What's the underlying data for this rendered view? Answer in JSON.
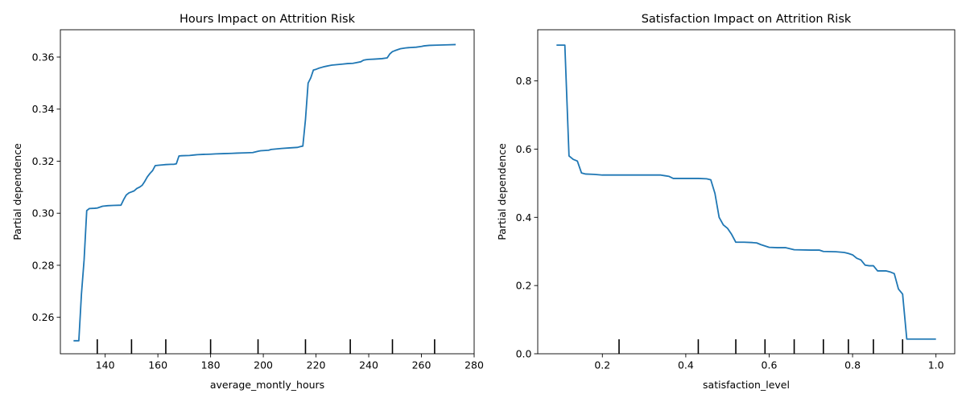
{
  "colors": {
    "line": "#1f77b4",
    "rug": "#000000",
    "background": "#ffffff"
  },
  "chart_data": [
    {
      "type": "line",
      "title": "Hours Impact on Attrition Risk",
      "xlabel": "average_montly_hours",
      "ylabel": "Partial dependence",
      "xlim": [
        123,
        280
      ],
      "ylim": [
        0.246,
        0.3705
      ],
      "xticks": [
        140,
        160,
        180,
        200,
        220,
        240,
        260,
        280
      ],
      "xtick_labels": [
        "140",
        "160",
        "180",
        "200",
        "220",
        "240",
        "260",
        "280"
      ],
      "yticks": [
        0.26,
        0.28,
        0.3,
        0.32,
        0.34,
        0.36
      ],
      "ytick_labels": [
        "0.26",
        "0.28",
        "0.30",
        "0.32",
        "0.34",
        "0.36"
      ],
      "grid": false,
      "deciles": [
        137,
        150,
        163,
        180,
        198,
        216,
        233,
        249,
        265
      ],
      "x": [
        128,
        130,
        131,
        132,
        133,
        134,
        136,
        137,
        139,
        141,
        143,
        146,
        147,
        148,
        149,
        150,
        151,
        152,
        153,
        154,
        155,
        156,
        157,
        158,
        159,
        160,
        162,
        163,
        165,
        166,
        167,
        168,
        169,
        172,
        174,
        175,
        177,
        180,
        182,
        185,
        188,
        190,
        193,
        196,
        198,
        199,
        202,
        203,
        205,
        207,
        210,
        213,
        214,
        215,
        216,
        217,
        218,
        219,
        220,
        221,
        222,
        223,
        224,
        225,
        226,
        228,
        230,
        232,
        234,
        235,
        237,
        238,
        239,
        240,
        242,
        245,
        247,
        248,
        249,
        250,
        252,
        254,
        255,
        258,
        260,
        261,
        263,
        266,
        270,
        273
      ],
      "y": [
        0.251,
        0.251,
        0.269,
        0.282,
        0.301,
        0.3018,
        0.3019,
        0.302,
        0.3027,
        0.3029,
        0.303,
        0.3031,
        0.3052,
        0.307,
        0.3078,
        0.3082,
        0.3086,
        0.3095,
        0.31,
        0.3107,
        0.3122,
        0.314,
        0.3153,
        0.3164,
        0.3183,
        0.3184,
        0.3186,
        0.3187,
        0.3188,
        0.3188,
        0.319,
        0.322,
        0.3221,
        0.3222,
        0.3224,
        0.3225,
        0.3226,
        0.3227,
        0.3228,
        0.3229,
        0.323,
        0.3231,
        0.3232,
        0.3233,
        0.3238,
        0.324,
        0.3242,
        0.3245,
        0.3247,
        0.3249,
        0.3251,
        0.3253,
        0.3256,
        0.3258,
        0.336,
        0.35,
        0.352,
        0.355,
        0.3553,
        0.3557,
        0.356,
        0.3563,
        0.3565,
        0.3567,
        0.3569,
        0.3571,
        0.3573,
        0.3575,
        0.3576,
        0.3578,
        0.3582,
        0.3588,
        0.359,
        0.3591,
        0.3592,
        0.3594,
        0.3597,
        0.3612,
        0.3621,
        0.3625,
        0.3632,
        0.3635,
        0.3636,
        0.3638,
        0.3641,
        0.3643,
        0.3645,
        0.3646,
        0.3647,
        0.3648
      ]
    },
    {
      "type": "line",
      "title": "Satisfaction Impact on Attrition Risk",
      "xlabel": "satisfaction_level",
      "ylabel": "Partial dependence",
      "xlim": [
        0.045,
        1.045
      ],
      "ylim": [
        0.0,
        0.95
      ],
      "xticks": [
        0.2,
        0.4,
        0.6,
        0.8,
        1.0
      ],
      "xtick_labels": [
        "0.2",
        "0.4",
        "0.6",
        "0.8",
        "1.0"
      ],
      "yticks": [
        0.0,
        0.2,
        0.4,
        0.6,
        0.8
      ],
      "ytick_labels": [
        "0.0",
        "0.2",
        "0.4",
        "0.6",
        "0.8"
      ],
      "grid": false,
      "deciles": [
        0.24,
        0.43,
        0.52,
        0.59,
        0.66,
        0.73,
        0.79,
        0.85,
        0.92
      ],
      "x": [
        0.09,
        0.1,
        0.11,
        0.12,
        0.13,
        0.14,
        0.15,
        0.16,
        0.18,
        0.2,
        0.22,
        0.25,
        0.28,
        0.31,
        0.34,
        0.35,
        0.36,
        0.37,
        0.39,
        0.43,
        0.45,
        0.46,
        0.47,
        0.48,
        0.49,
        0.5,
        0.51,
        0.52,
        0.54,
        0.56,
        0.57,
        0.58,
        0.6,
        0.62,
        0.63,
        0.64,
        0.66,
        0.7,
        0.72,
        0.73,
        0.76,
        0.78,
        0.79,
        0.8,
        0.81,
        0.82,
        0.83,
        0.84,
        0.85,
        0.86,
        0.87,
        0.88,
        0.89,
        0.9,
        0.91,
        0.92,
        0.93,
        1.0
      ],
      "y": [
        0.905,
        0.905,
        0.905,
        0.58,
        0.57,
        0.565,
        0.53,
        0.527,
        0.526,
        0.524,
        0.524,
        0.524,
        0.524,
        0.524,
        0.524,
        0.522,
        0.52,
        0.514,
        0.514,
        0.514,
        0.513,
        0.51,
        0.47,
        0.4,
        0.378,
        0.368,
        0.35,
        0.327,
        0.327,
        0.326,
        0.325,
        0.32,
        0.312,
        0.311,
        0.311,
        0.311,
        0.305,
        0.304,
        0.304,
        0.3,
        0.299,
        0.297,
        0.294,
        0.29,
        0.28,
        0.275,
        0.26,
        0.258,
        0.258,
        0.243,
        0.243,
        0.243,
        0.24,
        0.235,
        0.19,
        0.175,
        0.043,
        0.043
      ]
    }
  ]
}
